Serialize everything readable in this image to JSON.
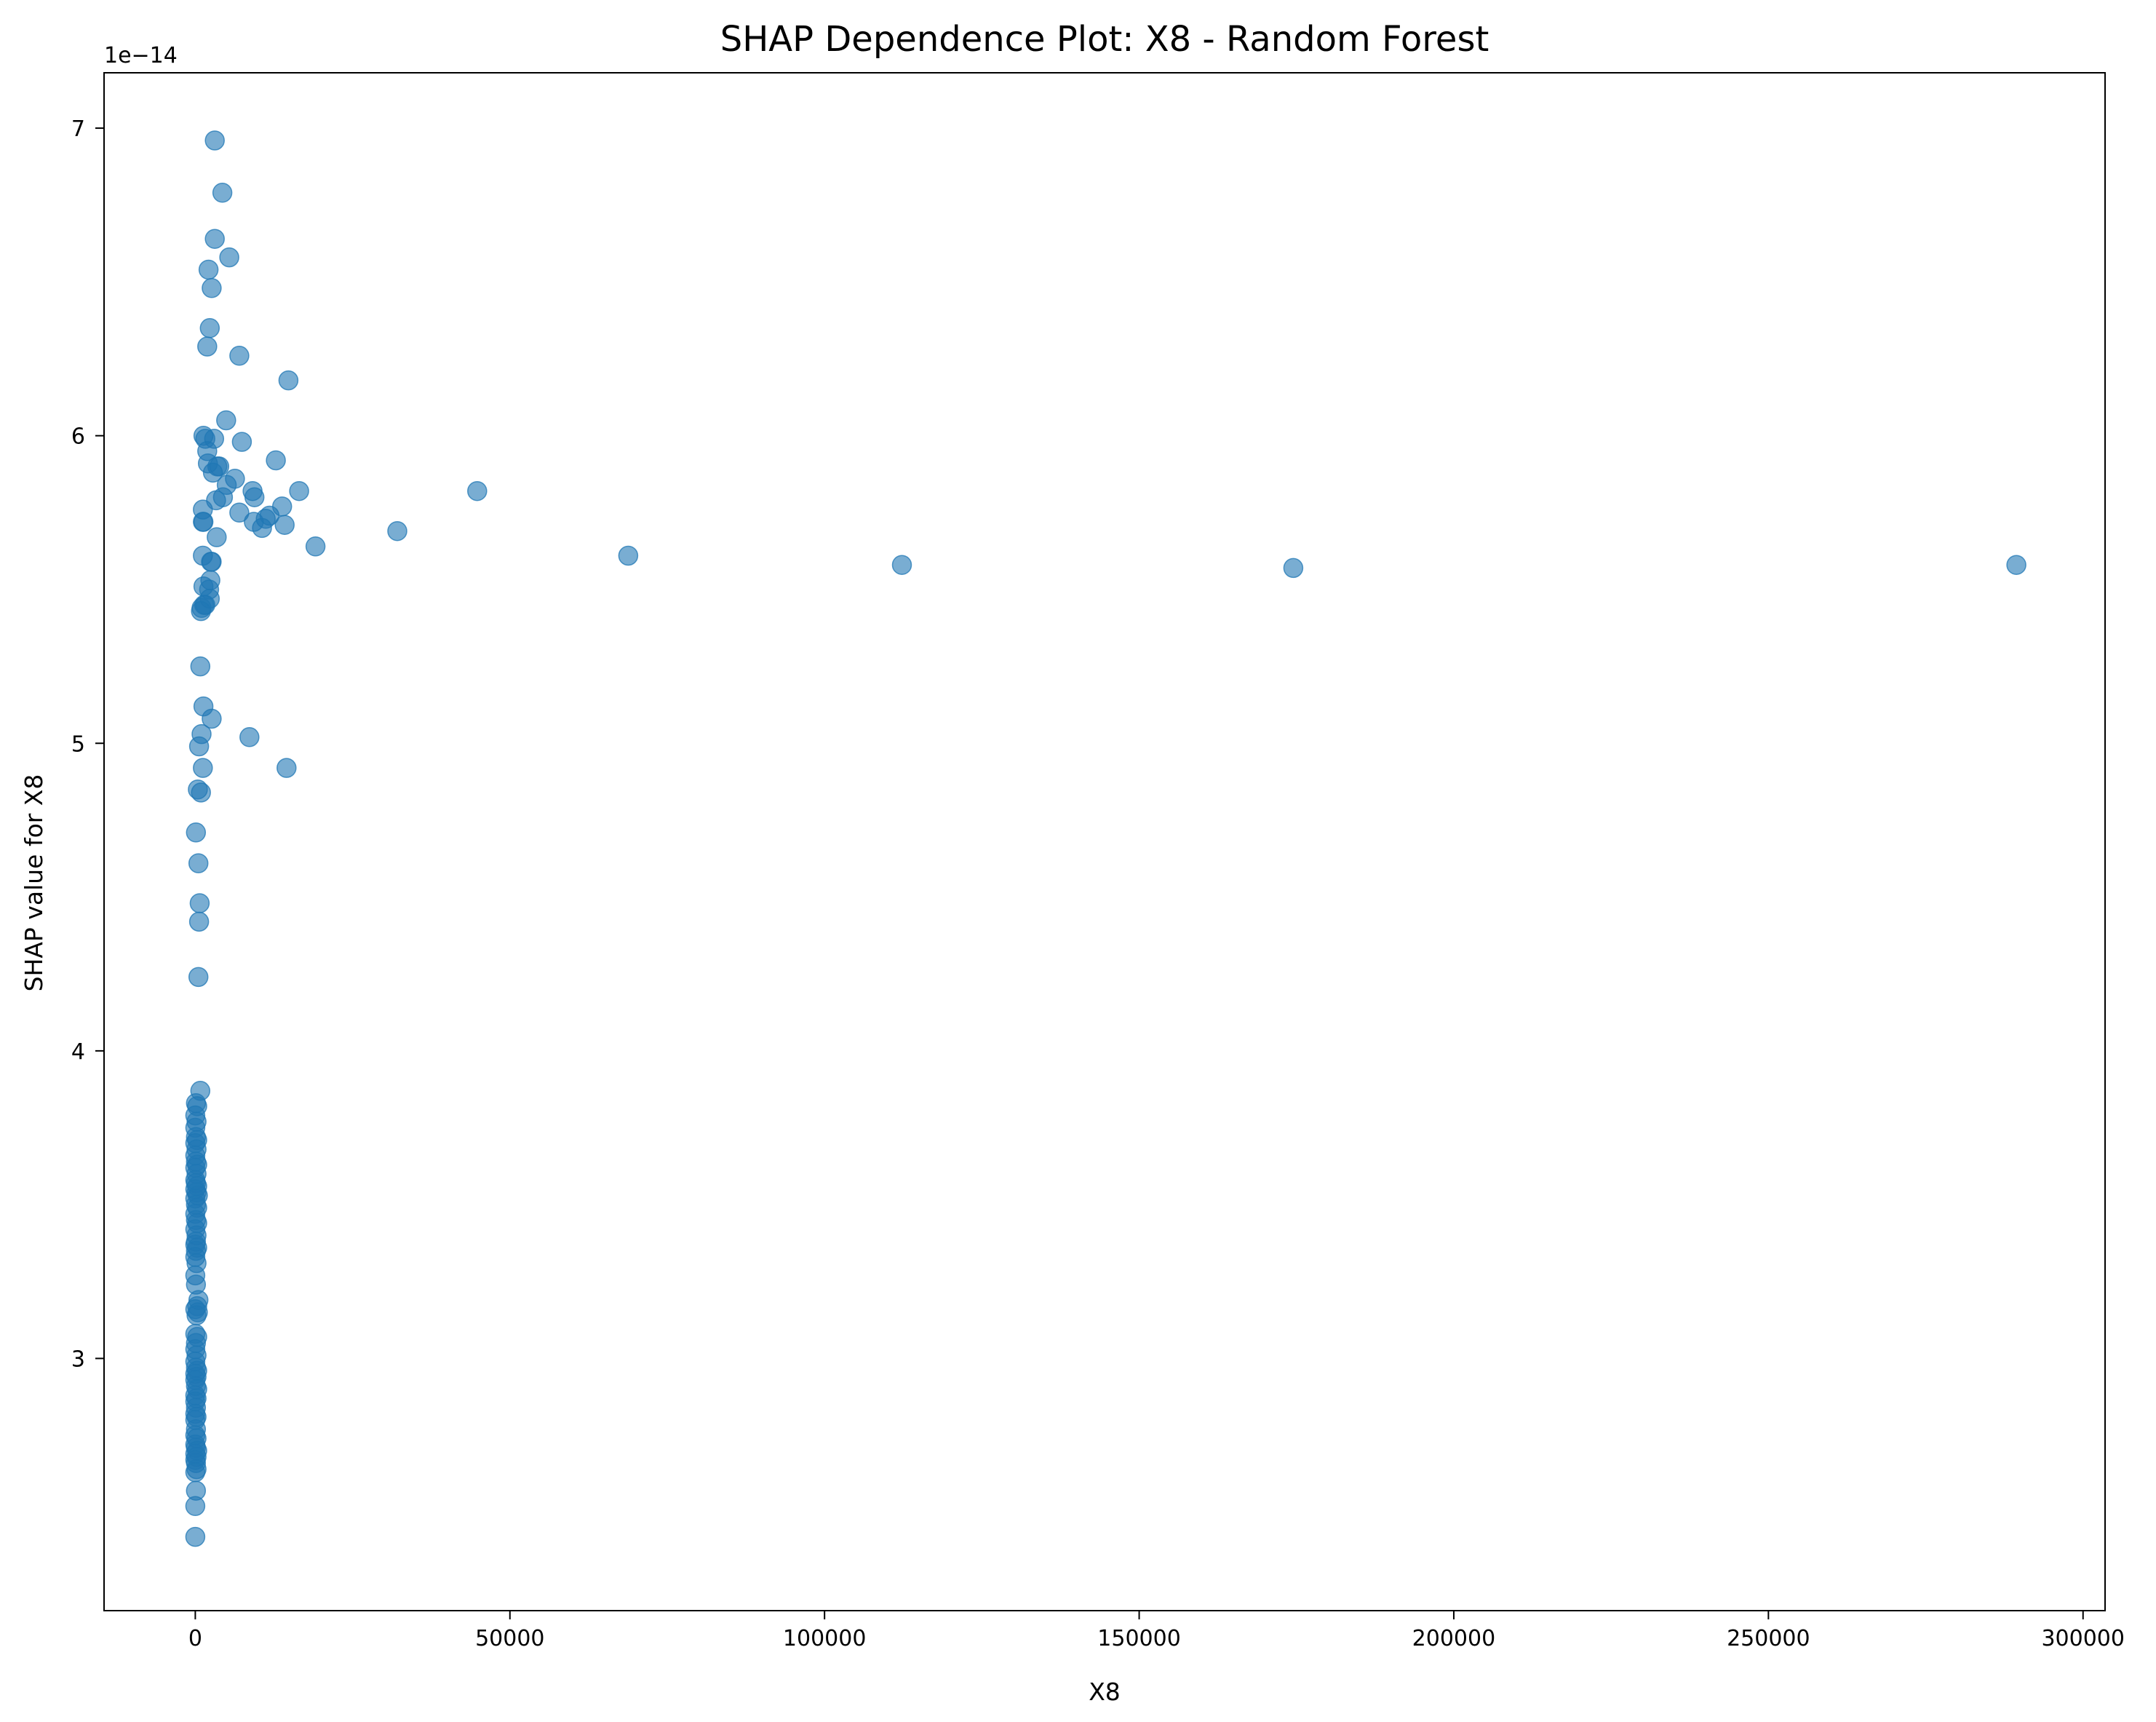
{
  "chart_data": {
    "type": "scatter",
    "title": "SHAP Dependence Plot: X8 - Random Forest",
    "xlabel": "X8",
    "ylabel": "SHAP value for X8",
    "y_offset_label": "1e−14",
    "xlim": [
      -14500,
      303500
    ],
    "ylim": [
      2.18,
      7.18
    ],
    "x_ticks": [
      0,
      50000,
      100000,
      150000,
      200000,
      250000,
      300000
    ],
    "x_tick_labels": [
      "0",
      "50000",
      "100000",
      "150000",
      "200000",
      "250000",
      "300000"
    ],
    "y_ticks": [
      3,
      4,
      5,
      6,
      7
    ],
    "y_tick_labels": [
      "3",
      "4",
      "5",
      "6",
      "7"
    ],
    "y_scale": "values multiplied by 1e-14",
    "grid": false,
    "legend": "none",
    "marker_color": "#1f77b4",
    "marker_alpha": 0.6,
    "points": [
      [
        3100,
        6.96
      ],
      [
        4300,
        6.79
      ],
      [
        3100,
        6.64
      ],
      [
        5400,
        6.58
      ],
      [
        2100,
        6.54
      ],
      [
        2600,
        6.48
      ],
      [
        2300,
        6.35
      ],
      [
        1900,
        6.29
      ],
      [
        7000,
        6.26
      ],
      [
        14800,
        6.18
      ],
      [
        4900,
        6.05
      ],
      [
        1300,
        6.0
      ],
      [
        1600,
        5.99
      ],
      [
        3000,
        5.99
      ],
      [
        7400,
        5.98
      ],
      [
        1900,
        5.95
      ],
      [
        12800,
        5.92
      ],
      [
        2000,
        5.91
      ],
      [
        3500,
        5.9
      ],
      [
        3800,
        5.9
      ],
      [
        2800,
        5.88
      ],
      [
        6300,
        5.86
      ],
      [
        5000,
        5.84
      ],
      [
        16500,
        5.82
      ],
      [
        9100,
        5.82
      ],
      [
        44800,
        5.82
      ],
      [
        9400,
        5.8
      ],
      [
        4400,
        5.8
      ],
      [
        3300,
        5.79
      ],
      [
        13800,
        5.77
      ],
      [
        1200,
        5.76
      ],
      [
        7000,
        5.75
      ],
      [
        11800,
        5.74
      ],
      [
        11200,
        5.73
      ],
      [
        9300,
        5.72
      ],
      [
        1200,
        5.72
      ],
      [
        1300,
        5.72
      ],
      [
        14200,
        5.71
      ],
      [
        10600,
        5.7
      ],
      [
        32100,
        5.69
      ],
      [
        3400,
        5.67
      ],
      [
        19100,
        5.64
      ],
      [
        1200,
        5.61
      ],
      [
        68800,
        5.61
      ],
      [
        2500,
        5.59
      ],
      [
        2600,
        5.59
      ],
      [
        112300,
        5.58
      ],
      [
        289400,
        5.58
      ],
      [
        174500,
        5.57
      ],
      [
        2400,
        5.53
      ],
      [
        1300,
        5.51
      ],
      [
        2200,
        5.5
      ],
      [
        2300,
        5.47
      ],
      [
        1600,
        5.45
      ],
      [
        1000,
        5.44
      ],
      [
        1400,
        5.45
      ],
      [
        900,
        5.43
      ],
      [
        800,
        5.25
      ],
      [
        1300,
        5.12
      ],
      [
        2600,
        5.08
      ],
      [
        1000,
        5.03
      ],
      [
        8600,
        5.02
      ],
      [
        600,
        4.99
      ],
      [
        14500,
        4.92
      ],
      [
        1200,
        4.92
      ],
      [
        400,
        4.85
      ],
      [
        900,
        4.84
      ],
      [
        100,
        4.71
      ],
      [
        500,
        4.61
      ],
      [
        700,
        4.48
      ],
      [
        600,
        4.42
      ],
      [
        500,
        4.24
      ],
      [
        800,
        3.87
      ],
      [
        100,
        3.83
      ],
      [
        300,
        3.82
      ],
      [
        0,
        3.79
      ],
      [
        200,
        3.77
      ],
      [
        0,
        3.75
      ],
      [
        100,
        3.72
      ],
      [
        300,
        3.71
      ],
      [
        0,
        3.7
      ],
      [
        200,
        3.68
      ],
      [
        0,
        3.66
      ],
      [
        100,
        3.64
      ],
      [
        300,
        3.63
      ],
      [
        0,
        3.62
      ],
      [
        200,
        3.6
      ],
      [
        0,
        3.58
      ],
      [
        100,
        3.57
      ],
      [
        300,
        3.56
      ],
      [
        0,
        3.55
      ],
      [
        200,
        3.54
      ],
      [
        400,
        3.53
      ],
      [
        0,
        3.52
      ],
      [
        100,
        3.5
      ],
      [
        300,
        3.49
      ],
      [
        0,
        3.47
      ],
      [
        100,
        3.45
      ],
      [
        300,
        3.44
      ],
      [
        0,
        3.42
      ],
      [
        200,
        3.4
      ],
      [
        100,
        3.38
      ],
      [
        0,
        3.37
      ],
      [
        300,
        3.36
      ],
      [
        100,
        3.35
      ],
      [
        0,
        3.33
      ],
      [
        200,
        3.31
      ],
      [
        0,
        3.27
      ],
      [
        100,
        3.24
      ],
      [
        500,
        3.19
      ],
      [
        300,
        3.17
      ],
      [
        0,
        3.16
      ],
      [
        400,
        3.15
      ],
      [
        200,
        3.14
      ],
      [
        0,
        3.08
      ],
      [
        300,
        3.07
      ],
      [
        100,
        3.05
      ],
      [
        0,
        3.03
      ],
      [
        200,
        3.01
      ],
      [
        0,
        2.99
      ],
      [
        100,
        2.97
      ],
      [
        300,
        2.96
      ],
      [
        0,
        2.95
      ],
      [
        200,
        2.94
      ],
      [
        0,
        2.93
      ],
      [
        100,
        2.91
      ],
      [
        300,
        2.9
      ],
      [
        0,
        2.88
      ],
      [
        200,
        2.87
      ],
      [
        0,
        2.86
      ],
      [
        100,
        2.84
      ],
      [
        0,
        2.82
      ],
      [
        200,
        2.81
      ],
      [
        0,
        2.8
      ],
      [
        100,
        2.77
      ],
      [
        0,
        2.75
      ],
      [
        200,
        2.74
      ],
      [
        0,
        2.72
      ],
      [
        100,
        2.71
      ],
      [
        300,
        2.7
      ],
      [
        0,
        2.69
      ],
      [
        200,
        2.68
      ],
      [
        0,
        2.67
      ],
      [
        100,
        2.66
      ],
      [
        200,
        2.64
      ],
      [
        0,
        2.63
      ],
      [
        100,
        2.57
      ],
      [
        0,
        2.52
      ],
      [
        0,
        2.42
      ]
    ]
  }
}
